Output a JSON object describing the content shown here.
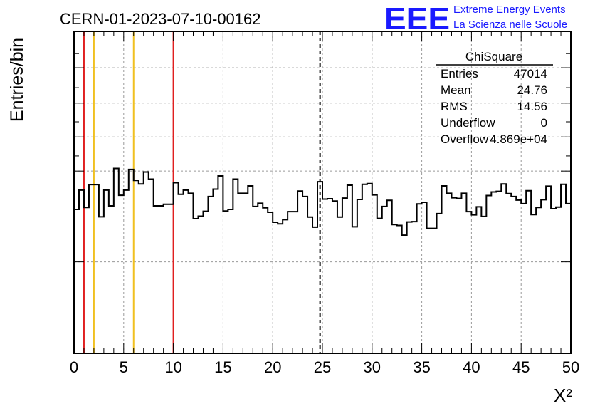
{
  "run_title": "CERN-01-2023-07-10-00162",
  "logo": {
    "mark": "EEE",
    "line1": "Extreme Energy Events",
    "line2": "La Scienza nelle Scuole",
    "color": "#1a1aff"
  },
  "colors": {
    "histogram": "#000000",
    "red_marker": "#e02020",
    "yellow_marker": "#f0c020",
    "grid": "#9a9a9a"
  },
  "stats": {
    "title": "ChiSquare",
    "rows": [
      {
        "label": "Entries",
        "value": "47014"
      },
      {
        "label": "Mean",
        "value": "24.76"
      },
      {
        "label": "RMS",
        "value": "14.56"
      },
      {
        "label": "Underflow",
        "value": "0"
      },
      {
        "label": "Overflow",
        "value": "4.869e+04"
      }
    ]
  },
  "chart_data": {
    "type": "histogram",
    "title": "CERN-01-2023-07-10-00162",
    "xlabel": "X²",
    "ylabel": "Entries/bin",
    "xlim": [
      0,
      50
    ],
    "ylim": [
      0,
      1
    ],
    "y_tick_labels": false,
    "grid": true,
    "x_ticks": [
      0,
      5,
      10,
      15,
      20,
      25,
      30,
      35,
      40,
      45,
      50
    ],
    "bin_width": 0.5,
    "values": [
      0.447,
      0.507,
      0.453,
      0.524,
      0.524,
      0.424,
      0.507,
      0.458,
      0.574,
      0.491,
      0.507,
      0.571,
      0.537,
      0.526,
      0.563,
      0.541,
      0.458,
      0.458,
      0.463,
      0.463,
      0.53,
      0.494,
      0.507,
      0.497,
      0.418,
      0.426,
      0.441,
      0.487,
      0.51,
      0.551,
      0.442,
      0.447,
      0.541,
      0.497,
      0.497,
      0.52,
      0.456,
      0.466,
      0.452,
      0.438,
      0.407,
      0.402,
      0.415,
      0.44,
      0.44,
      0.504,
      0.487,
      0.423,
      0.392,
      0.533,
      0.479,
      0.48,
      0.473,
      0.423,
      0.482,
      0.522,
      0.393,
      0.478,
      0.525,
      0.527,
      0.492,
      0.419,
      0.456,
      0.475,
      0.4,
      0.397,
      0.367,
      0.408,
      0.409,
      0.464,
      0.469,
      0.388,
      0.388,
      0.434,
      0.52,
      0.497,
      0.483,
      0.481,
      0.497,
      0.44,
      0.43,
      0.455,
      0.425,
      0.49,
      0.501,
      0.503,
      0.526,
      0.496,
      0.487,
      0.476,
      0.465,
      0.505,
      0.431,
      0.453,
      0.477,
      0.519,
      0.449,
      0.454,
      0.525,
      0.465
    ],
    "reference_lines": [
      {
        "x": 1,
        "color": "red",
        "style": "solid"
      },
      {
        "x": 2,
        "color": "yellow",
        "style": "solid"
      },
      {
        "x": 6,
        "color": "yellow",
        "style": "solid"
      },
      {
        "x": 10,
        "color": "red",
        "style": "solid"
      },
      {
        "x": 24.76,
        "color": "black",
        "style": "dashed"
      }
    ]
  }
}
